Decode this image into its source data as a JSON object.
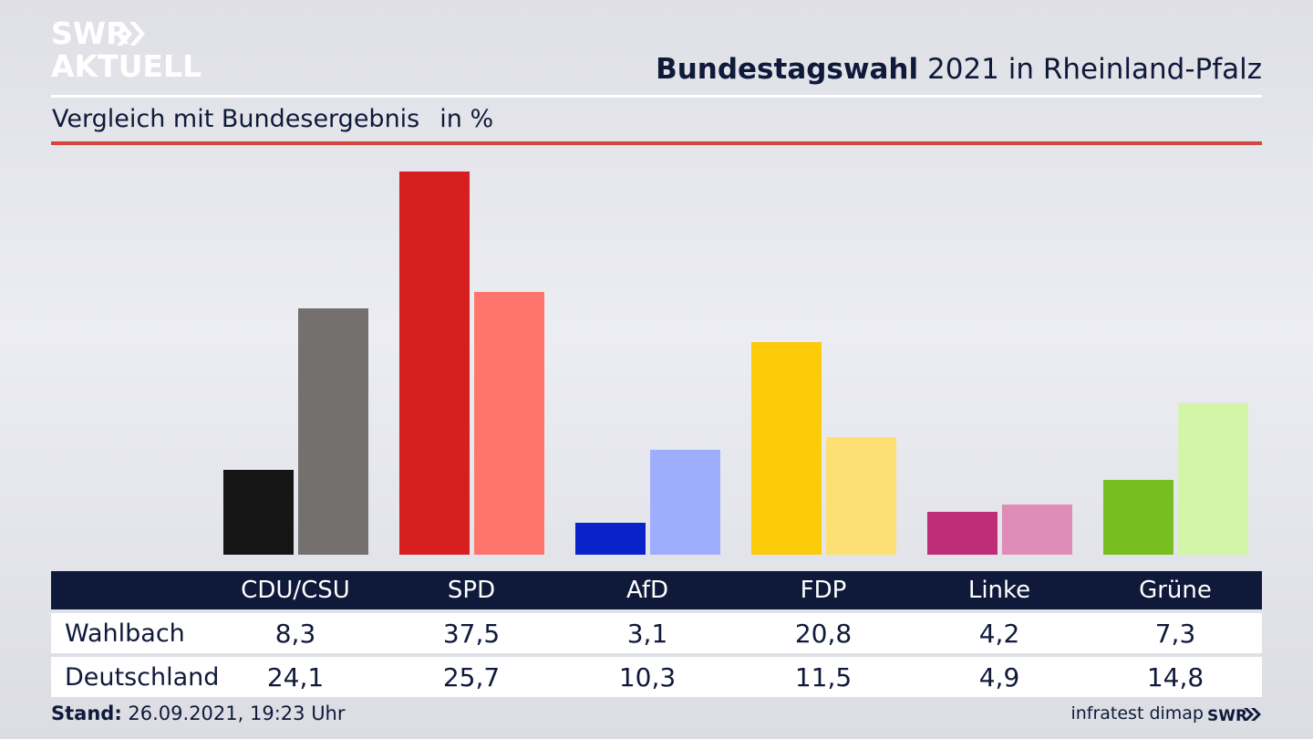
{
  "brand": {
    "logo_line1": "SWR",
    "logo_line2": "AKTUELL",
    "footer_logo": "SWR"
  },
  "header": {
    "title_bold": "Bundestagswahl",
    "title_rest": "2021 in Rheinland-Pfalz",
    "subtitle": "Vergleich mit Bundesergebnis",
    "unit": "in %"
  },
  "colors": {
    "background": "#e6e7ec",
    "navy": "#0f1a3a",
    "accent_red": "#d6463a"
  },
  "chart_data": {
    "type": "bar",
    "categories": [
      "CDU/CSU",
      "SPD",
      "AfD",
      "FDP",
      "Linke",
      "Grüne"
    ],
    "series": [
      {
        "name": "Wahlbach",
        "values": [
          8.3,
          37.5,
          3.1,
          20.8,
          4.2,
          7.3
        ],
        "colors": [
          "#151515",
          "#d62020",
          "#0a23c8",
          "#fccb0a",
          "#be2e78",
          "#78be20"
        ]
      },
      {
        "name": "Deutschland",
        "values": [
          24.1,
          25.7,
          10.3,
          11.5,
          4.9,
          14.8
        ],
        "colors": [
          "#74706e",
          "#ff756e",
          "#9fadff",
          "#fde074",
          "#e08cb8",
          "#d3f5a8"
        ]
      }
    ],
    "ylim": [
      0,
      40
    ],
    "grid": false,
    "legend": "table-below"
  },
  "footer": {
    "stand_label": "Stand:",
    "stand_value": "26.09.2021, 19:23 Uhr",
    "source": "infratest dimap"
  }
}
